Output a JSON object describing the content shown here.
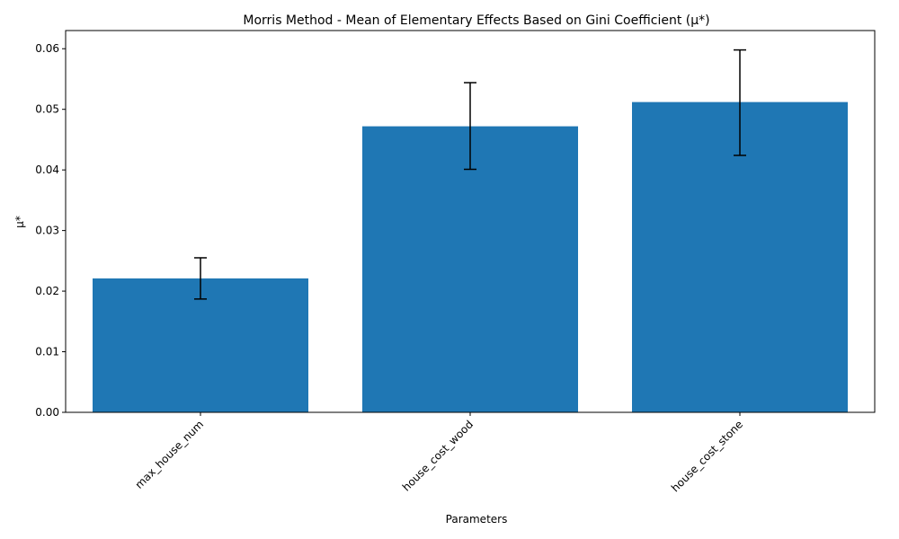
{
  "chart_data": {
    "type": "bar",
    "title": "Morris Method - Mean of Elementary Effects Based on Gini Coefficient (μ*)",
    "xlabel": "Parameters",
    "ylabel": "μ*",
    "categories": [
      "max_house_num",
      "house_cost_wood",
      "house_cost_stone"
    ],
    "values": [
      0.0221,
      0.0472,
      0.0512
    ],
    "error_low": [
      0.0187,
      0.0401,
      0.0424
    ],
    "error_high": [
      0.0255,
      0.0544,
      0.0598
    ],
    "ylim": [
      0,
      0.063
    ],
    "yticks": [
      0.0,
      0.01,
      0.02,
      0.03,
      0.04,
      0.05,
      0.06
    ],
    "ytick_labels": [
      "0.00",
      "0.01",
      "0.02",
      "0.03",
      "0.04",
      "0.05",
      "0.06"
    ],
    "bar_color": "#1f77b4",
    "error_color": "#000000",
    "grid": false,
    "legend": "none"
  }
}
